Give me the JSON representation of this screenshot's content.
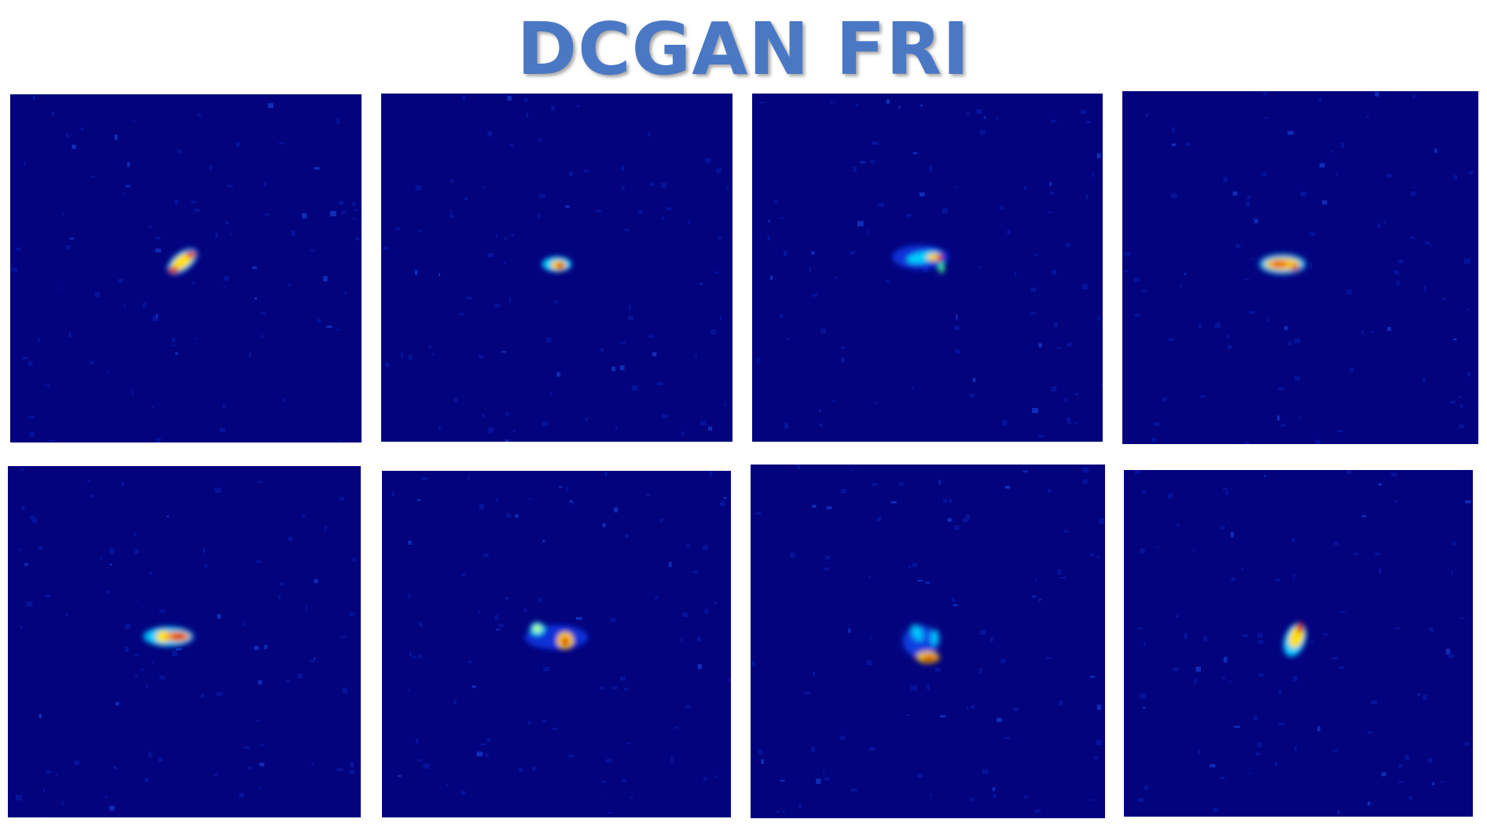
{
  "title": "DCGAN FRI",
  "colors": {
    "title": "#4a78c4",
    "background": "#03037e"
  },
  "images": [
    {
      "row": 1,
      "col": 1,
      "description_name": "generated-fri-source-image"
    },
    {
      "row": 1,
      "col": 2,
      "description_name": "generated-fri-source-image"
    },
    {
      "row": 1,
      "col": 3,
      "description_name": "generated-fri-source-image"
    },
    {
      "row": 1,
      "col": 4,
      "description_name": "generated-fri-source-image"
    },
    {
      "row": 2,
      "col": 1,
      "description_name": "generated-fri-source-image"
    },
    {
      "row": 2,
      "col": 2,
      "description_name": "generated-fri-source-image"
    },
    {
      "row": 2,
      "col": 3,
      "description_name": "generated-fri-source-image"
    },
    {
      "row": 2,
      "col": 4,
      "description_name": "generated-fri-source-image"
    }
  ]
}
